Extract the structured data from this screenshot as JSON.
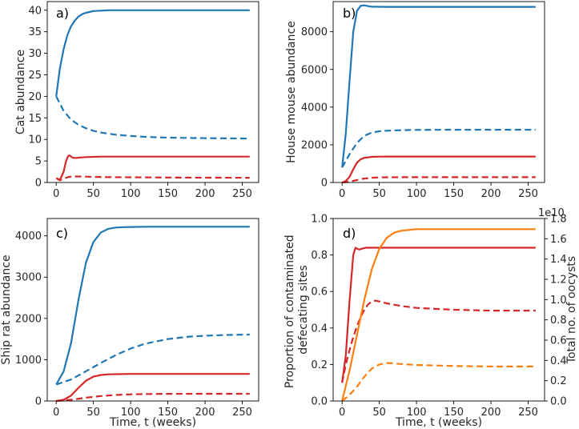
{
  "colors": {
    "blue": "#1f77b4",
    "red": "#d62728",
    "orange": "#ff7f0e"
  },
  "x_axis": {
    "label": "Time, t (weeks)",
    "range": [
      0,
      260
    ]
  },
  "chart_data": [
    {
      "id": "a",
      "type": "line",
      "panel_label": "a)",
      "title": "",
      "xlabel": "",
      "ylabel": "Cat abundance",
      "xlim": [
        -12,
        272
      ],
      "ylim": [
        0,
        42
      ],
      "xticks": [
        0,
        50,
        100,
        150,
        200,
        250
      ],
      "yticks": [
        0,
        5,
        10,
        15,
        20,
        25,
        30,
        35,
        40
      ],
      "series": [
        {
          "name": "cats blue solid",
          "color": "blue",
          "style": "solid",
          "x": [
            0,
            5,
            10,
            15,
            20,
            25,
            30,
            35,
            40,
            50,
            60,
            70,
            80,
            100,
            150,
            200,
            260
          ],
          "y": [
            20,
            26.5,
            31,
            34.2,
            36.3,
            37.6,
            38.5,
            39.1,
            39.4,
            39.8,
            39.9,
            40,
            40,
            40,
            40,
            40,
            40
          ]
        },
        {
          "name": "cats blue dashed",
          "color": "blue",
          "style": "dashed",
          "x": [
            0,
            10,
            20,
            30,
            40,
            50,
            60,
            80,
            100,
            120,
            150,
            200,
            260
          ],
          "y": [
            20,
            16.6,
            14.6,
            13.4,
            12.6,
            12,
            11.6,
            11.1,
            10.8,
            10.6,
            10.4,
            10.3,
            10.2
          ]
        },
        {
          "name": "cats red solid",
          "color": "red",
          "style": "solid",
          "x": [
            0,
            5,
            10,
            13,
            16,
            18,
            20,
            23,
            27,
            32,
            40,
            60,
            100,
            260
          ],
          "y": [
            1,
            0.6,
            2.5,
            4.8,
            6.1,
            6.3,
            6,
            5.7,
            5.7,
            5.8,
            5.9,
            6,
            6,
            6
          ]
        },
        {
          "name": "cats red dashed",
          "color": "red",
          "style": "dashed",
          "x": [
            0,
            5,
            10,
            15,
            20,
            25,
            30,
            40,
            50,
            70,
            100,
            150,
            200,
            260
          ],
          "y": [
            1,
            0.5,
            0.9,
            1.2,
            1.35,
            1.4,
            1.4,
            1.35,
            1.3,
            1.25,
            1.2,
            1.15,
            1.12,
            1.1
          ]
        }
      ]
    },
    {
      "id": "b",
      "type": "line",
      "panel_label": "b)",
      "title": "",
      "xlabel": "",
      "ylabel": "House mouse abundance",
      "xlim": [
        -12,
        272
      ],
      "ylim": [
        0,
        9600
      ],
      "xticks": [
        0,
        50,
        100,
        150,
        200,
        250
      ],
      "yticks": [
        0,
        2000,
        4000,
        6000,
        8000
      ],
      "series": [
        {
          "name": "mice blue solid",
          "color": "blue",
          "style": "solid",
          "x": [
            0,
            5,
            10,
            15,
            20,
            25,
            30,
            35,
            40,
            60,
            100,
            260
          ],
          "y": [
            800,
            2600,
            5400,
            8000,
            9100,
            9380,
            9400,
            9360,
            9330,
            9320,
            9320,
            9320
          ]
        },
        {
          "name": "mice blue dashed",
          "color": "blue",
          "style": "dashed",
          "x": [
            0,
            5,
            10,
            20,
            30,
            40,
            50,
            60,
            80,
            100,
            150,
            260
          ],
          "y": [
            800,
            1150,
            1500,
            2100,
            2480,
            2650,
            2720,
            2750,
            2780,
            2790,
            2800,
            2800
          ]
        },
        {
          "name": "mice red solid",
          "color": "red",
          "style": "solid",
          "x": [
            0,
            5,
            10,
            15,
            20,
            25,
            30,
            40,
            50,
            60,
            100,
            260
          ],
          "y": [
            0,
            80,
            300,
            700,
            1050,
            1230,
            1310,
            1360,
            1370,
            1375,
            1375,
            1375
          ]
        },
        {
          "name": "mice red dashed",
          "color": "red",
          "style": "dashed",
          "x": [
            0,
            10,
            20,
            30,
            40,
            50,
            60,
            80,
            100,
            260
          ],
          "y": [
            0,
            40,
            130,
            210,
            250,
            270,
            275,
            280,
            280,
            280
          ]
        }
      ]
    },
    {
      "id": "c",
      "type": "line",
      "panel_label": "c)",
      "title": "",
      "xlabel": "Time, t (weeks)",
      "ylabel": "Ship rat abundance",
      "xlim": [
        -12,
        272
      ],
      "ylim": [
        0,
        4420
      ],
      "xticks": [
        0,
        50,
        100,
        150,
        200,
        250
      ],
      "yticks": [
        0,
        1000,
        2000,
        3000,
        4000
      ],
      "series": [
        {
          "name": "rats blue solid",
          "color": "blue",
          "style": "solid",
          "x": [
            0,
            10,
            20,
            30,
            40,
            50,
            60,
            70,
            80,
            90,
            100,
            120,
            150,
            200,
            260
          ],
          "y": [
            400,
            720,
            1400,
            2450,
            3350,
            3850,
            4080,
            4170,
            4200,
            4210,
            4215,
            4220,
            4220,
            4220,
            4220
          ]
        },
        {
          "name": "rats blue dashed",
          "color": "blue",
          "style": "dashed",
          "x": [
            0,
            20,
            40,
            60,
            80,
            100,
            120,
            150,
            180,
            200,
            230,
            260
          ],
          "y": [
            400,
            520,
            720,
            920,
            1110,
            1270,
            1390,
            1500,
            1560,
            1580,
            1600,
            1610
          ]
        },
        {
          "name": "rats red solid",
          "color": "red",
          "style": "solid",
          "x": [
            0,
            10,
            20,
            30,
            40,
            50,
            60,
            70,
            80,
            100,
            150,
            260
          ],
          "y": [
            0,
            30,
            130,
            320,
            490,
            590,
            630,
            645,
            650,
            655,
            655,
            655
          ]
        },
        {
          "name": "rats red dashed",
          "color": "red",
          "style": "dashed",
          "x": [
            0,
            20,
            40,
            60,
            80,
            100,
            120,
            150,
            200,
            260
          ],
          "y": [
            0,
            30,
            80,
            120,
            145,
            160,
            168,
            172,
            174,
            175
          ]
        }
      ]
    },
    {
      "id": "d",
      "type": "line",
      "panel_label": "d)",
      "title": "",
      "xlabel": "Time, t (weeks)",
      "ylabel": "Proportion of contaminated defecating sites",
      "ylabel_lines": [
        "Proportion of contaminated",
        "defecating sites"
      ],
      "ylabel_right": "Total no. of oocysts",
      "ylabel_right_scale": "1e10",
      "xlim": [
        -12,
        272
      ],
      "ylim": [
        0,
        1.0
      ],
      "ylim_right": [
        0,
        1.8
      ],
      "xticks": [
        0,
        50,
        100,
        150,
        200,
        250
      ],
      "yticks": [
        0.0,
        0.2,
        0.4,
        0.6,
        0.8,
        1.0
      ],
      "yticks_right": [
        0.0,
        0.2,
        0.4,
        0.6,
        0.8,
        1.0,
        1.2,
        1.4,
        1.6,
        1.8
      ],
      "series": [
        {
          "name": "sites red solid",
          "color": "red",
          "style": "solid",
          "axis": "left",
          "x": [
            0,
            5,
            10,
            15,
            18,
            20,
            23,
            27,
            32,
            40,
            60,
            100,
            260
          ],
          "y": [
            0.1,
            0.25,
            0.55,
            0.8,
            0.84,
            0.835,
            0.83,
            0.835,
            0.84,
            0.84,
            0.84,
            0.84,
            0.84
          ]
        },
        {
          "name": "sites red dashed",
          "color": "red",
          "style": "dashed",
          "axis": "left",
          "x": [
            0,
            5,
            10,
            15,
            20,
            25,
            30,
            35,
            40,
            45,
            50,
            60,
            80,
            100,
            150,
            200,
            260
          ],
          "y": [
            0.1,
            0.2,
            0.28,
            0.35,
            0.41,
            0.46,
            0.5,
            0.53,
            0.545,
            0.55,
            0.545,
            0.535,
            0.52,
            0.51,
            0.5,
            0.495,
            0.495
          ]
        },
        {
          "name": "oocysts orange solid",
          "color": "orange",
          "style": "solid",
          "axis": "right",
          "x": [
            0,
            10,
            20,
            30,
            40,
            50,
            60,
            70,
            80,
            100,
            120,
            150,
            200,
            260
          ],
          "y": [
            0,
            0.3,
            0.65,
            1.0,
            1.3,
            1.5,
            1.61,
            1.66,
            1.68,
            1.695,
            1.695,
            1.695,
            1.695,
            1.695
          ]
        },
        {
          "name": "oocysts orange dashed",
          "color": "orange",
          "style": "dashed",
          "axis": "right",
          "x": [
            0,
            10,
            20,
            30,
            40,
            50,
            60,
            70,
            80,
            100,
            150,
            200,
            260
          ],
          "y": [
            0,
            0.06,
            0.14,
            0.24,
            0.32,
            0.36,
            0.375,
            0.37,
            0.365,
            0.355,
            0.345,
            0.34,
            0.34
          ]
        }
      ]
    }
  ]
}
